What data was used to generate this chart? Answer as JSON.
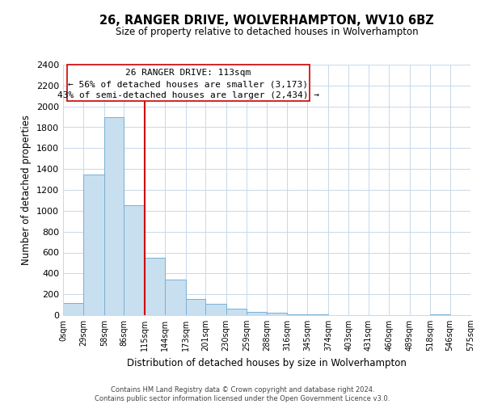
{
  "title": "26, RANGER DRIVE, WOLVERHAMPTON, WV10 6BZ",
  "subtitle": "Size of property relative to detached houses in Wolverhampton",
  "xlabel": "Distribution of detached houses by size in Wolverhampton",
  "ylabel": "Number of detached properties",
  "bin_edges": [
    0,
    29,
    58,
    86,
    115,
    144,
    173,
    201,
    230,
    259,
    288,
    316,
    345,
    374,
    403,
    431,
    460,
    489,
    518,
    546,
    575
  ],
  "bar_heights": [
    120,
    1350,
    1900,
    1050,
    550,
    340,
    155,
    110,
    60,
    30,
    25,
    5,
    5,
    0,
    0,
    0,
    0,
    0,
    5,
    0
  ],
  "bar_color": "#c8dff0",
  "bar_edge_color": "#7ab0d4",
  "vline_x": 115,
  "vline_color": "#cc0000",
  "ylim": [
    0,
    2400
  ],
  "yticks": [
    0,
    200,
    400,
    600,
    800,
    1000,
    1200,
    1400,
    1600,
    1800,
    2000,
    2200,
    2400
  ],
  "annotation_box_text_line1": "26 RANGER DRIVE: 113sqm",
  "annotation_box_text_line2": "← 56% of detached houses are smaller (3,173)",
  "annotation_box_text_line3": "43% of semi-detached houses are larger (2,434) →",
  "footer_line1": "Contains HM Land Registry data © Crown copyright and database right 2024.",
  "footer_line2": "Contains public sector information licensed under the Open Government Licence v3.0.",
  "background_color": "#ffffff",
  "grid_color": "#c8d8e8",
  "xtick_labels": [
    "0sqm",
    "29sqm",
    "58sqm",
    "86sqm",
    "115sqm",
    "144sqm",
    "173sqm",
    "201sqm",
    "230sqm",
    "259sqm",
    "288sqm",
    "316sqm",
    "345sqm",
    "374sqm",
    "403sqm",
    "431sqm",
    "460sqm",
    "489sqm",
    "518sqm",
    "546sqm",
    "575sqm"
  ]
}
